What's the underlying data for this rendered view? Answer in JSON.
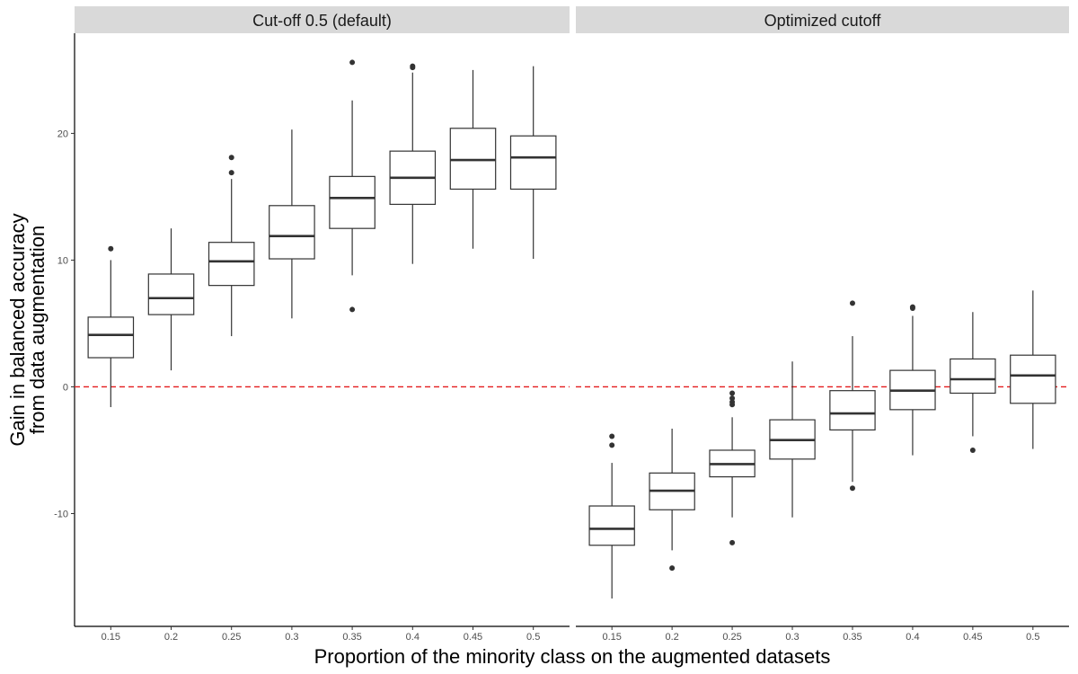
{
  "chart_data": {
    "type": "boxplot",
    "xlabel": "Proportion of the minority class on the augmented datasets",
    "ylabel_lines": [
      "Gain in balanced accuracy",
      "from data augmentation"
    ],
    "categories": [
      "0.15",
      "0.2",
      "0.25",
      "0.3",
      "0.35",
      "0.4",
      "0.45",
      "0.5"
    ],
    "ylim": [
      -18.9,
      27.9
    ],
    "yticks": [
      -10,
      0,
      10,
      20
    ],
    "reference_line": {
      "y": 0,
      "color": "#e41a1c",
      "style": "dashed"
    },
    "grid": false,
    "panels": [
      {
        "title": "Cut-off 0.5 (default)",
        "boxes": [
          {
            "lo": -1.6,
            "q1": 2.3,
            "med": 4.1,
            "q3": 5.5,
            "hi": 10.0,
            "outliers": [
              10.9
            ]
          },
          {
            "lo": 1.3,
            "q1": 5.7,
            "med": 7.0,
            "q3": 8.9,
            "hi": 12.5,
            "outliers": []
          },
          {
            "lo": 4.0,
            "q1": 8.0,
            "med": 9.9,
            "q3": 11.4,
            "hi": 16.4,
            "outliers": [
              18.1,
              16.9
            ]
          },
          {
            "lo": 5.4,
            "q1": 10.1,
            "med": 11.9,
            "q3": 14.3,
            "hi": 20.3,
            "outliers": []
          },
          {
            "lo": 8.8,
            "q1": 12.5,
            "med": 14.9,
            "q3": 16.6,
            "hi": 22.6,
            "outliers": [
              25.6,
              6.1
            ]
          },
          {
            "lo": 9.7,
            "q1": 14.4,
            "med": 16.5,
            "q3": 18.6,
            "hi": 24.8,
            "outliers": [
              25.3,
              25.2
            ]
          },
          {
            "lo": 10.9,
            "q1": 15.6,
            "med": 17.9,
            "q3": 20.4,
            "hi": 25.0,
            "outliers": []
          },
          {
            "lo": 10.1,
            "q1": 15.6,
            "med": 18.1,
            "q3": 19.8,
            "hi": 25.3,
            "outliers": []
          }
        ]
      },
      {
        "title": "Optimized cutoff",
        "boxes": [
          {
            "lo": -16.7,
            "q1": -12.5,
            "med": -11.2,
            "q3": -9.4,
            "hi": -6.0,
            "outliers": [
              -3.9,
              -4.6
            ]
          },
          {
            "lo": -12.9,
            "q1": -9.7,
            "med": -8.2,
            "q3": -6.8,
            "hi": -3.3,
            "outliers": [
              -14.3
            ]
          },
          {
            "lo": -10.3,
            "q1": -7.1,
            "med": -6.1,
            "q3": -5.0,
            "hi": -2.4,
            "outliers": [
              -0.5,
              -0.9,
              -1.2,
              -1.4,
              -12.3
            ]
          },
          {
            "lo": -10.3,
            "q1": -5.7,
            "med": -4.2,
            "q3": -2.6,
            "hi": 2.0,
            "outliers": []
          },
          {
            "lo": -7.5,
            "q1": -3.4,
            "med": -2.1,
            "q3": -0.3,
            "hi": 4.0,
            "outliers": [
              6.6,
              -8.0
            ]
          },
          {
            "lo": -5.4,
            "q1": -1.8,
            "med": -0.3,
            "q3": 1.3,
            "hi": 5.6,
            "outliers": [
              6.3,
              6.2
            ]
          },
          {
            "lo": -3.9,
            "q1": -0.5,
            "med": 0.6,
            "q3": 2.2,
            "hi": 5.9,
            "outliers": [
              -5.0
            ]
          },
          {
            "lo": -4.9,
            "q1": -1.3,
            "med": 0.9,
            "q3": 2.5,
            "hi": 7.6,
            "outliers": []
          }
        ]
      }
    ]
  }
}
